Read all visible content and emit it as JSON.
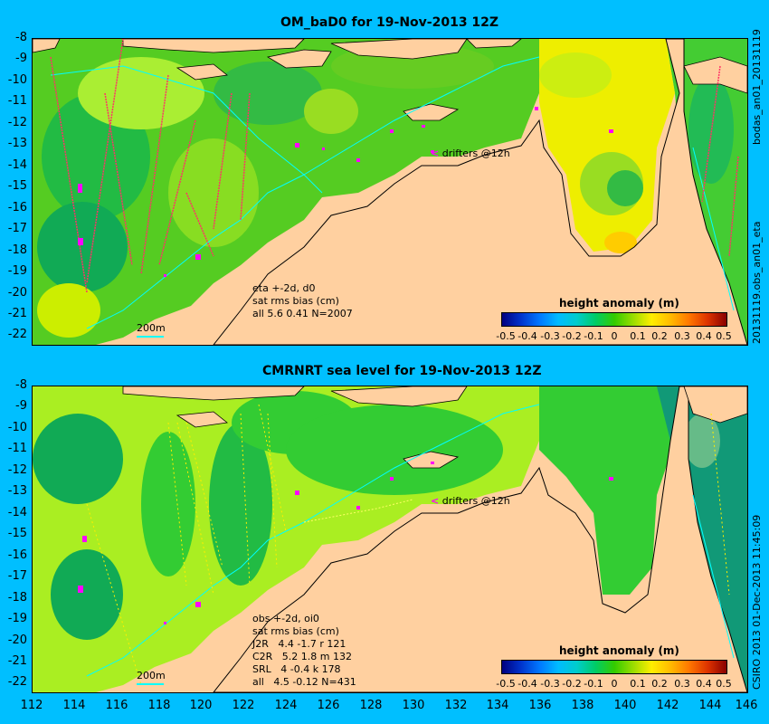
{
  "top_panel": {
    "title": "OM_baD0 for 19-Nov-2013 12Z",
    "annotation": "eta +-2d, d0\nsat rms bias (cm)\nall 5.6 0.41 N=2007",
    "drifters": "drifters @12h",
    "scale": "200m",
    "right_label": "20131119.obs_an01_eta",
    "right_label2": "bodas_an01_20131119",
    "legend_title": "height anomaly (m)",
    "legend_ticks": [
      "-0.5",
      "-0.4",
      "-0.3",
      "-0.2",
      "-0.1",
      "0",
      "0.1",
      "0.2",
      "0.3",
      "0.4",
      "0.5"
    ]
  },
  "bottom_panel": {
    "title": "CMRNRT sea level  for 19-Nov-2013 12Z",
    "annotation": "obs +-2d, oi0\nsat rms bias (cm)\nJ2R   4.4 -1.7 r 121\nC2R   5.2 1.8 m 132\nSRL   4 -0.4 k 178\nall   4.5 -0.12 N=431",
    "drifters": "drifters @12h",
    "scale": "200m",
    "right_label": "CSIRO 2013  01-Dec-2013 11:45:09",
    "legend_title": "height anomaly (m)",
    "legend_ticks": [
      "-0.5",
      "-0.4",
      "-0.3",
      "-0.2",
      "-0.1",
      "0",
      "0.1",
      "0.2",
      "0.3",
      "0.4",
      "0.5"
    ]
  },
  "y_ticks": [
    "-8",
    "-9",
    "-10",
    "-11",
    "-12",
    "-13",
    "-14",
    "-15",
    "-16",
    "-17",
    "-18",
    "-19",
    "-20",
    "-21",
    "-22"
  ],
  "x_ticks": [
    "112",
    "114",
    "116",
    "118",
    "120",
    "122",
    "124",
    "126",
    "128",
    "130",
    "132",
    "134",
    "136",
    "138",
    "140",
    "142",
    "144",
    "146"
  ],
  "colors": {
    "background": "#00bfff",
    "land": "#ffd0a0",
    "sea_green": "#33cc33",
    "sea_light": "#aaee22",
    "sea_dark": "#00aa55",
    "sea_yellow": "#ffee00",
    "drifter": "#ff00ff"
  },
  "colorbar": [
    "#000080",
    "#0033cc",
    "#0077ff",
    "#00bbff",
    "#00cccc",
    "#00cc66",
    "#33cc00",
    "#99dd00",
    "#ffee00",
    "#ffbb00",
    "#ff7700",
    "#dd3300",
    "#880000"
  ]
}
